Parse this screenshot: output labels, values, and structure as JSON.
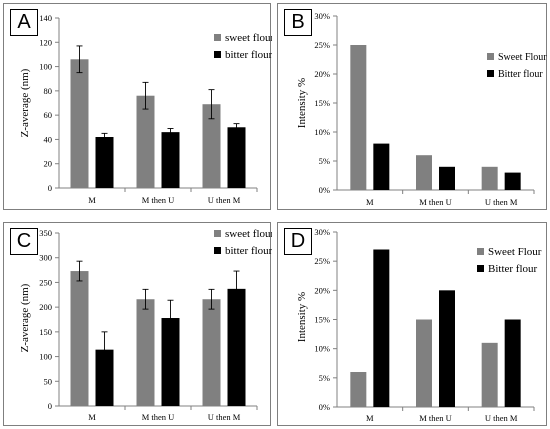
{
  "chart_data": [
    {
      "panel": "A",
      "type": "bar",
      "ylabel": "Z-average (nm)",
      "categories": [
        "M",
        "M then U",
        "U then M"
      ],
      "ylim": [
        0,
        140
      ],
      "yticks": [
        "0",
        "20",
        "40",
        "60",
        "80",
        "100",
        "120",
        "140"
      ],
      "tick_values": [
        0,
        20,
        40,
        60,
        80,
        100,
        120,
        140
      ],
      "series": [
        {
          "name": "sweet flour",
          "color": "#808080",
          "values": [
            106,
            76,
            69
          ],
          "errors": [
            11,
            11,
            12
          ]
        },
        {
          "name": "bitter flour",
          "color": "#000000",
          "values": [
            42,
            46,
            50
          ],
          "errors": [
            3,
            3,
            3
          ]
        }
      ],
      "legend": "top-right",
      "error_bars": true
    },
    {
      "panel": "B",
      "type": "bar",
      "ylabel": "Intensity %",
      "categories": [
        "M",
        "M then U",
        "U then M"
      ],
      "ylim": [
        0,
        30
      ],
      "yticks": [
        "0%",
        "5%",
        "10%",
        "15%",
        "20%",
        "25%",
        "30%"
      ],
      "tick_values": [
        0,
        5,
        10,
        15,
        20,
        25,
        30
      ],
      "series": [
        {
          "name": "Sweet Flour",
          "color": "#808080",
          "values": [
            25,
            6,
            4
          ]
        },
        {
          "name": "Bitter flour",
          "color": "#000000",
          "values": [
            8,
            4,
            3
          ]
        }
      ],
      "legend": "right",
      "error_bars": false
    },
    {
      "panel": "C",
      "type": "bar",
      "ylabel": "Z-average (nm)",
      "categories": [
        "M",
        "M then U",
        "U then M"
      ],
      "ylim": [
        0,
        350
      ],
      "yticks": [
        "0",
        "50",
        "100",
        "150",
        "200",
        "250",
        "300",
        "350"
      ],
      "tick_values": [
        0,
        50,
        100,
        150,
        200,
        250,
        300,
        350
      ],
      "series": [
        {
          "name": "sweet flour",
          "color": "#808080",
          "values": [
            273,
            216,
            216
          ],
          "errors": [
            20,
            20,
            20
          ]
        },
        {
          "name": "bitter flour",
          "color": "#000000",
          "values": [
            114,
            178,
            237
          ],
          "errors": [
            36,
            36,
            36
          ]
        }
      ],
      "legend": "top-right",
      "error_bars": true
    },
    {
      "panel": "D",
      "type": "bar",
      "ylabel": "Intensity %",
      "categories": [
        "M",
        "M then U",
        "U then M"
      ],
      "ylim": [
        0,
        30
      ],
      "yticks": [
        "0%",
        "5%",
        "10%",
        "15%",
        "20%",
        "25%",
        "30%"
      ],
      "tick_values": [
        0,
        5,
        10,
        15,
        20,
        25,
        30
      ],
      "series": [
        {
          "name": "Sweet Flour",
          "color": "#808080",
          "values": [
            6,
            15,
            11
          ]
        },
        {
          "name": "Bitter flour",
          "color": "#000000",
          "values": [
            27,
            20,
            15
          ]
        }
      ],
      "legend": "top-right",
      "error_bars": false
    }
  ]
}
